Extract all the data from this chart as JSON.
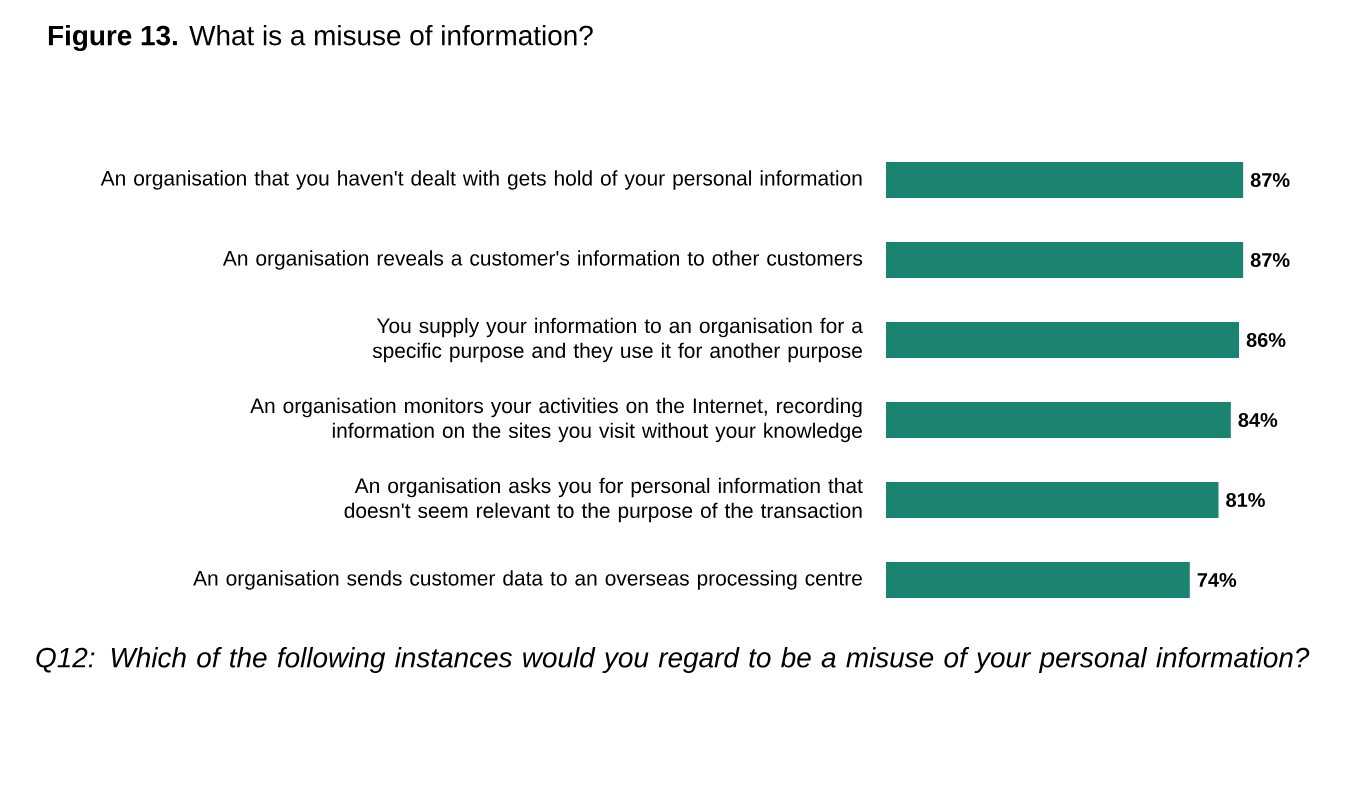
{
  "chart_data": {
    "type": "bar",
    "orientation": "horizontal",
    "title": "**Figure 13.** What is a misuse of information?",
    "categories": [
      "An organisation that you haven't dealt with gets hold of your personal information",
      "An organisation reveals a customer's information to other customers",
      "You supply your information to an organisation for a specific purpose and they use it for another purpose",
      "An organisation monitors your activities on the Internet, recording information on the sites you visit without your knowledge",
      "An organisation asks you for personal information that doesn't seem relevant to the purpose of the transaction",
      "An organisation sends customer data to an overseas processing centre"
    ],
    "values": [
      87,
      87,
      86,
      84,
      81,
      74
    ],
    "value_labels": [
      "87%",
      "87%",
      "86%",
      "84%",
      "81%",
      "74%"
    ],
    "color": "#1a8470",
    "annotations": [
      "*Q12: Which of the following instances would you regard to be a misuse of your personal information?*"
    ]
  }
}
